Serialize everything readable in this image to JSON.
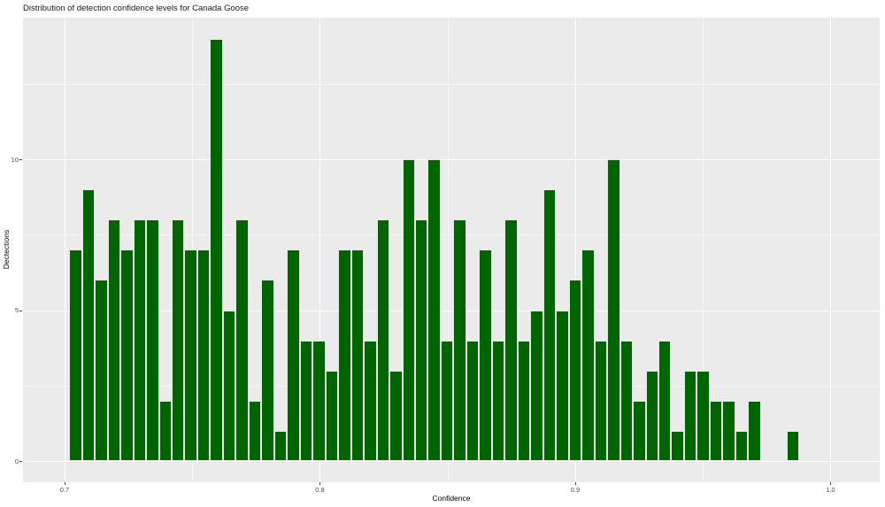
{
  "page": {
    "title": "Distribution of detection confidence levels for Canada Goose"
  },
  "chart_data": {
    "type": "histogram",
    "title": "Distribution of detection confidence levels for Canada Goose",
    "xlabel": "Confidence",
    "ylabel": "Dectections",
    "legend": null,
    "grid": true,
    "xlim": [
      0.68371,
      1.01924
    ],
    "ylim": [
      -0.704,
      14.696
    ],
    "x_ticks": [
      {
        "value": 0.7,
        "label": "0.7"
      },
      {
        "value": 0.8,
        "label": "0.8"
      },
      {
        "value": 0.9,
        "label": "0.9"
      },
      {
        "value": 1.0,
        "label": "1.0"
      }
    ],
    "y_ticks": [
      {
        "value": 0,
        "label": "0"
      },
      {
        "value": 5,
        "label": "5"
      },
      {
        "value": 10,
        "label": "10"
      }
    ],
    "x_minor_gridlines": [
      0.75,
      0.85,
      0.95
    ],
    "y_minor_gridlines": [
      2.5,
      7.5,
      12.5
    ],
    "bin_start": 0.7018,
    "bin_width": 0.005017,
    "counts": [
      7,
      9,
      6,
      8,
      7,
      8,
      8,
      2,
      8,
      7,
      7,
      14,
      5,
      8,
      2,
      6,
      1,
      7,
      4,
      4,
      3,
      7,
      7,
      4,
      8,
      3,
      10,
      8,
      10,
      4,
      8,
      4,
      7,
      4,
      8,
      4,
      5,
      9,
      5,
      6,
      7,
      4,
      10,
      4,
      2,
      3,
      4,
      1,
      3,
      3,
      2,
      2,
      1,
      2,
      0,
      0,
      1
    ],
    "colors": {
      "bar_fill": "#006400",
      "bar_edge": "#e0eae0",
      "panel_bg": "#ebebeb",
      "grid": "#ffffff",
      "axis_text": "#4d4d4d",
      "title_text": "#1a1a1a",
      "page_bg": "#ffffff"
    }
  }
}
